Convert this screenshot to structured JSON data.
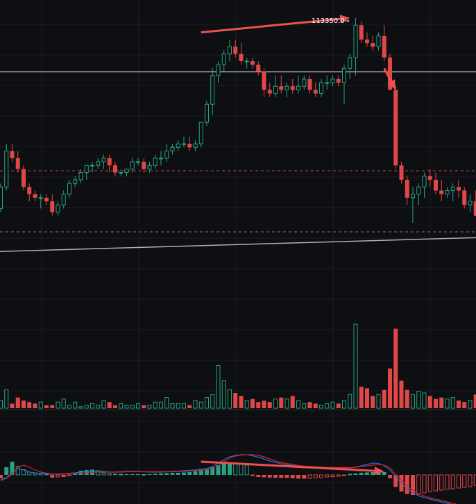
{
  "colors": {
    "background": "#0e0f12",
    "grid": "#1c1e24",
    "up": "#26a384",
    "down": "#e04848",
    "arrow": "#f05050",
    "hline": "#ffffff",
    "dashed": "#c84040",
    "dashed_grey": "#7a7a7a",
    "trendline": "#b0b0b0",
    "macd_line": "#1f6fe0",
    "signal_line": "#d02020"
  },
  "price_label": "113350.0",
  "price_label_arrow": "→",
  "chart_data": {
    "type": "candlestick",
    "y_range": [
      105600,
      114000
    ],
    "horizontal_lines": [
      {
        "price": 112000,
        "style": "solid"
      },
      {
        "price": 109250,
        "style": "dashed-red"
      },
      {
        "price": 107550,
        "style": "dashed-grey"
      }
    ],
    "trendline": {
      "from_index": -1,
      "from_price": 107000,
      "to_index": 90,
      "to_price": 107420
    },
    "candles": [
      [
        108200,
        108900,
        108100,
        108800
      ],
      [
        108800,
        110000,
        108700,
        109800
      ],
      [
        109800,
        110000,
        109500,
        109600
      ],
      [
        109600,
        109800,
        109200,
        109300
      ],
      [
        109300,
        109400,
        108700,
        108800
      ],
      [
        108800,
        108900,
        108400,
        108600
      ],
      [
        108600,
        108700,
        108400,
        108500
      ],
      [
        108500,
        108600,
        108200,
        108500
      ],
      [
        108500,
        108600,
        108300,
        108400
      ],
      [
        108400,
        108600,
        108000,
        108100
      ],
      [
        108100,
        108400,
        108000,
        108300
      ],
      [
        108300,
        108700,
        108200,
        108600
      ],
      [
        108600,
        109000,
        108500,
        108900
      ],
      [
        108900,
        109100,
        108800,
        109000
      ],
      [
        109000,
        109300,
        108900,
        109200
      ],
      [
        109200,
        109400,
        109000,
        109400
      ],
      [
        109400,
        109500,
        109200,
        109400
      ],
      [
        109400,
        109600,
        109300,
        109500
      ],
      [
        109500,
        109700,
        109300,
        109600
      ],
      [
        109600,
        109700,
        109200,
        109400
      ],
      [
        109400,
        109500,
        109100,
        109200
      ],
      [
        109200,
        109300,
        109100,
        109200
      ],
      [
        109200,
        109300,
        109100,
        109300
      ],
      [
        109300,
        109600,
        109200,
        109500
      ],
      [
        109500,
        109600,
        109400,
        109500
      ],
      [
        109500,
        109600,
        109200,
        109300
      ],
      [
        109300,
        109500,
        109200,
        109400
      ],
      [
        109400,
        109700,
        109300,
        109600
      ],
      [
        109600,
        109800,
        109400,
        109600
      ],
      [
        109600,
        110000,
        109500,
        109800
      ],
      [
        109800,
        110000,
        109700,
        109900
      ],
      [
        109900,
        110100,
        109800,
        110000
      ],
      [
        110000,
        110200,
        109900,
        110000
      ],
      [
        110000,
        110200,
        109800,
        109900
      ],
      [
        109900,
        110100,
        109800,
        110000
      ],
      [
        110000,
        110600,
        109900,
        110600
      ],
      [
        110600,
        111200,
        110500,
        111100
      ],
      [
        111100,
        112100,
        110800,
        111900
      ],
      [
        111900,
        112300,
        111700,
        112200
      ],
      [
        112200,
        112600,
        112000,
        112500
      ],
      [
        112500,
        112900,
        112300,
        112700
      ],
      [
        112700,
        112900,
        112400,
        112500
      ],
      [
        112500,
        112800,
        112200,
        112300
      ],
      [
        112300,
        112400,
        112100,
        112300
      ],
      [
        112300,
        112400,
        112100,
        112200
      ],
      [
        112200,
        112300,
        111900,
        112000
      ],
      [
        112000,
        112100,
        111300,
        111500
      ],
      [
        111500,
        111700,
        111300,
        111400
      ],
      [
        111400,
        111900,
        111300,
        111600
      ],
      [
        111600,
        111900,
        111400,
        111500
      ],
      [
        111500,
        111700,
        111300,
        111600
      ],
      [
        111600,
        111800,
        111400,
        111500
      ],
      [
        111500,
        111900,
        111400,
        111600
      ],
      [
        111600,
        111900,
        111500,
        111800
      ],
      [
        111800,
        111900,
        111400,
        111500
      ],
      [
        111500,
        111700,
        111300,
        111400
      ],
      [
        111400,
        111800,
        111300,
        111700
      ],
      [
        111700,
        111900,
        111500,
        111700
      ],
      [
        111700,
        111900,
        111600,
        111800
      ],
      [
        111800,
        111900,
        111600,
        111700
      ],
      [
        111700,
        112200,
        111100,
        112100
      ],
      [
        112100,
        112500,
        111800,
        112400
      ],
      [
        112400,
        113500,
        111900,
        113300
      ],
      [
        113300,
        113400,
        112800,
        112900
      ],
      [
        112900,
        113100,
        112700,
        112800
      ],
      [
        112800,
        113000,
        112600,
        112700
      ],
      [
        112700,
        113100,
        112600,
        113000
      ],
      [
        113000,
        113300,
        112300,
        112400
      ],
      [
        112400,
        112500,
        111500,
        111500
      ],
      [
        111500,
        111600,
        109300,
        109400
      ],
      [
        109400,
        109500,
        108900,
        109000
      ],
      [
        109000,
        109100,
        108300,
        108500
      ],
      [
        108500,
        108800,
        107800,
        108600
      ],
      [
        108600,
        108900,
        108300,
        108800
      ],
      [
        108800,
        109200,
        108500,
        109100
      ],
      [
        109100,
        109300,
        108800,
        109000
      ],
      [
        109000,
        109200,
        108600,
        108700
      ],
      [
        108700,
        109000,
        108400,
        108600
      ],
      [
        108600,
        108800,
        108500,
        108700
      ],
      [
        108700,
        108900,
        108400,
        108800
      ],
      [
        108800,
        109000,
        108500,
        108700
      ],
      [
        108700,
        108800,
        108200,
        108300
      ],
      [
        108300,
        108600,
        108100,
        108400
      ],
      [
        108400,
        108700,
        108000,
        108000
      ]
    ],
    "volume": [
      5,
      12,
      3,
      7,
      5,
      4,
      3,
      4,
      2,
      2,
      4,
      6,
      2,
      4,
      1,
      2,
      3,
      2,
      5,
      4,
      2,
      3,
      2,
      2,
      3,
      2,
      2,
      4,
      4,
      7,
      3,
      3,
      3,
      2,
      5,
      4,
      7,
      9,
      28,
      18,
      12,
      10,
      8,
      5,
      6,
      4,
      5,
      4,
      6,
      7,
      6,
      8,
      5,
      3,
      4,
      3,
      2,
      3,
      4,
      3,
      5,
      9,
      55,
      14,
      13,
      8,
      9,
      12,
      26,
      52,
      18,
      12,
      9,
      11,
      10,
      8,
      6,
      7,
      6,
      7,
      5,
      4,
      5,
      9
    ],
    "histogram": [
      -10,
      22,
      38,
      25,
      15,
      8,
      5,
      3,
      2,
      -8,
      -6,
      -6,
      -3,
      5,
      12,
      14,
      15,
      12,
      6,
      3,
      3,
      2,
      2,
      2,
      2,
      1,
      2,
      3,
      4,
      5,
      6,
      6,
      7,
      8,
      10,
      15,
      18,
      22,
      28,
      32,
      35,
      34,
      30,
      28,
      -3,
      -6,
      -7,
      -8,
      -9,
      -9,
      -9,
      -10,
      -11,
      -11,
      -10,
      -9,
      -8,
      -6,
      -5,
      -4,
      -3,
      2,
      4,
      6,
      7,
      8,
      8,
      8,
      -10,
      -35,
      -48,
      -55,
      -58,
      -56,
      -52,
      -48,
      -46,
      -44,
      -42,
      -40,
      -38,
      -36,
      -34,
      -30
    ],
    "macd_line": [
      -14,
      -8,
      5,
      18,
      14,
      8,
      6,
      4,
      3,
      2,
      2,
      3,
      4,
      6,
      8,
      10,
      11,
      11,
      10,
      8,
      8,
      9,
      10,
      10,
      10,
      9,
      8,
      8,
      8,
      9,
      10,
      11,
      12,
      13,
      14,
      16,
      18,
      24,
      34,
      44,
      52,
      56,
      58,
      58,
      55,
      51,
      46,
      40,
      36,
      32,
      29,
      27,
      25,
      23,
      21,
      20,
      19,
      18,
      18,
      18,
      19,
      20,
      22,
      26,
      30,
      34,
      33,
      26,
      14,
      -6,
      -24,
      -40,
      -52,
      -60,
      -66,
      -70,
      -74,
      -78,
      -82,
      -86,
      -90,
      -94,
      -98,
      -100
    ],
    "signal_line": [
      -18,
      -10,
      2,
      22,
      28,
      22,
      14,
      8,
      5,
      3,
      2,
      2,
      3,
      4,
      5,
      6,
      7,
      8,
      8,
      8,
      8,
      8,
      9,
      9,
      9,
      9,
      9,
      9,
      9,
      9,
      9,
      10,
      10,
      11,
      12,
      13,
      15,
      19,
      26,
      38,
      48,
      54,
      57,
      58,
      58,
      56,
      52,
      46,
      40,
      36,
      33,
      30,
      27,
      25,
      24,
      23,
      22,
      21,
      21,
      21,
      21,
      21,
      22,
      24,
      26,
      28,
      30,
      28,
      20,
      2,
      -16,
      -32,
      -44,
      -54,
      -61,
      -66,
      -70,
      -74,
      -78,
      -82,
      -86,
      -90,
      -94,
      -96
    ]
  },
  "annotations": {
    "arrows": [
      {
        "name": "arrow-to-high",
        "from": [
          35,
          113100
        ],
        "to": [
          61,
          113500
        ]
      },
      {
        "name": "arrow-down-break",
        "from": [
          67,
          112100
        ],
        "to": [
          69,
          111500
        ]
      },
      {
        "name": "arrow-macd-divergence",
        "pane": "macd",
        "from": [
          35,
          38
        ],
        "to": [
          67,
          10
        ]
      }
    ]
  }
}
